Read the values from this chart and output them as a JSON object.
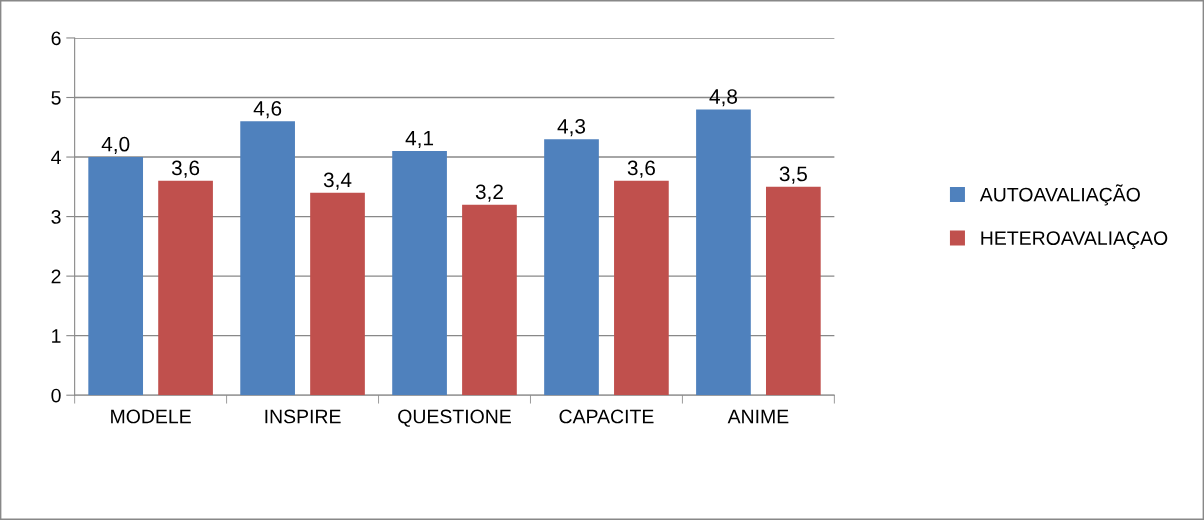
{
  "chart_data": {
    "type": "bar",
    "categories": [
      "MODELE",
      "INSPIRE",
      "QUESTIONE",
      "CAPACITE",
      "ANIME"
    ],
    "series": [
      {
        "name": "AUTOAVALIAÇÃO",
        "color": "#4f81bd",
        "values": [
          4.0,
          4.6,
          4.1,
          4.3,
          4.8
        ],
        "value_labels": [
          "4,0",
          "4,6",
          "4,1",
          "4,3",
          "4,8"
        ]
      },
      {
        "name": "HETEROAVALIAÇAO",
        "color": "#c0504d",
        "values": [
          3.6,
          3.4,
          3.2,
          3.6,
          3.5
        ],
        "value_labels": [
          "3,6",
          "3,4",
          "3,2",
          "3,6",
          "3,5"
        ]
      }
    ],
    "ylim": [
      0,
      6
    ],
    "yticks": [
      0,
      1,
      2,
      3,
      4,
      5,
      6
    ],
    "grid": "y",
    "legend": "right"
  }
}
